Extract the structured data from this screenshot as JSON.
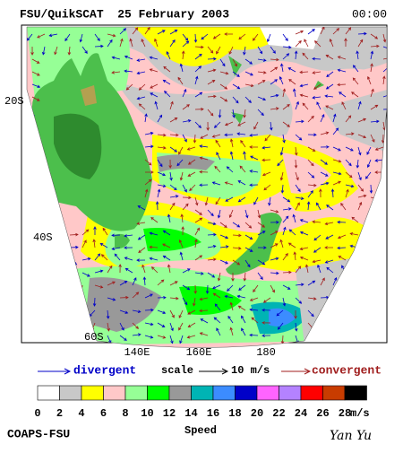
{
  "header": {
    "title": "FSU/QuikSCAT  25 February 2003",
    "time": "00:00"
  },
  "map": {
    "lat_labels": [
      "20S",
      "40S",
      "60S"
    ],
    "lon_labels": [
      "140E",
      "160E",
      "180"
    ]
  },
  "legend": {
    "divergent": "divergent",
    "scale": "scale",
    "scale_value": "10 m/s",
    "convergent": "convergent"
  },
  "colorbar": {
    "labels": [
      "0",
      "2",
      "4",
      "6",
      "8",
      "10",
      "12",
      "14",
      "16",
      "18",
      "20",
      "22",
      "24",
      "26",
      "28"
    ],
    "unit": "m/s",
    "colors": [
      "#ffffff",
      "#c8c8c8",
      "#ffff00",
      "#ffc8c8",
      "#96ff96",
      "#00ff00",
      "#999999",
      "#00b4b4",
      "#3c8cff",
      "#0000c8",
      "#ff64ff",
      "#b482ff",
      "#ff0000",
      "#c83c00",
      "#000000"
    ],
    "title": "Speed"
  },
  "footer": {
    "left": "COAPS-FSU",
    "right": "Yan Yu"
  }
}
